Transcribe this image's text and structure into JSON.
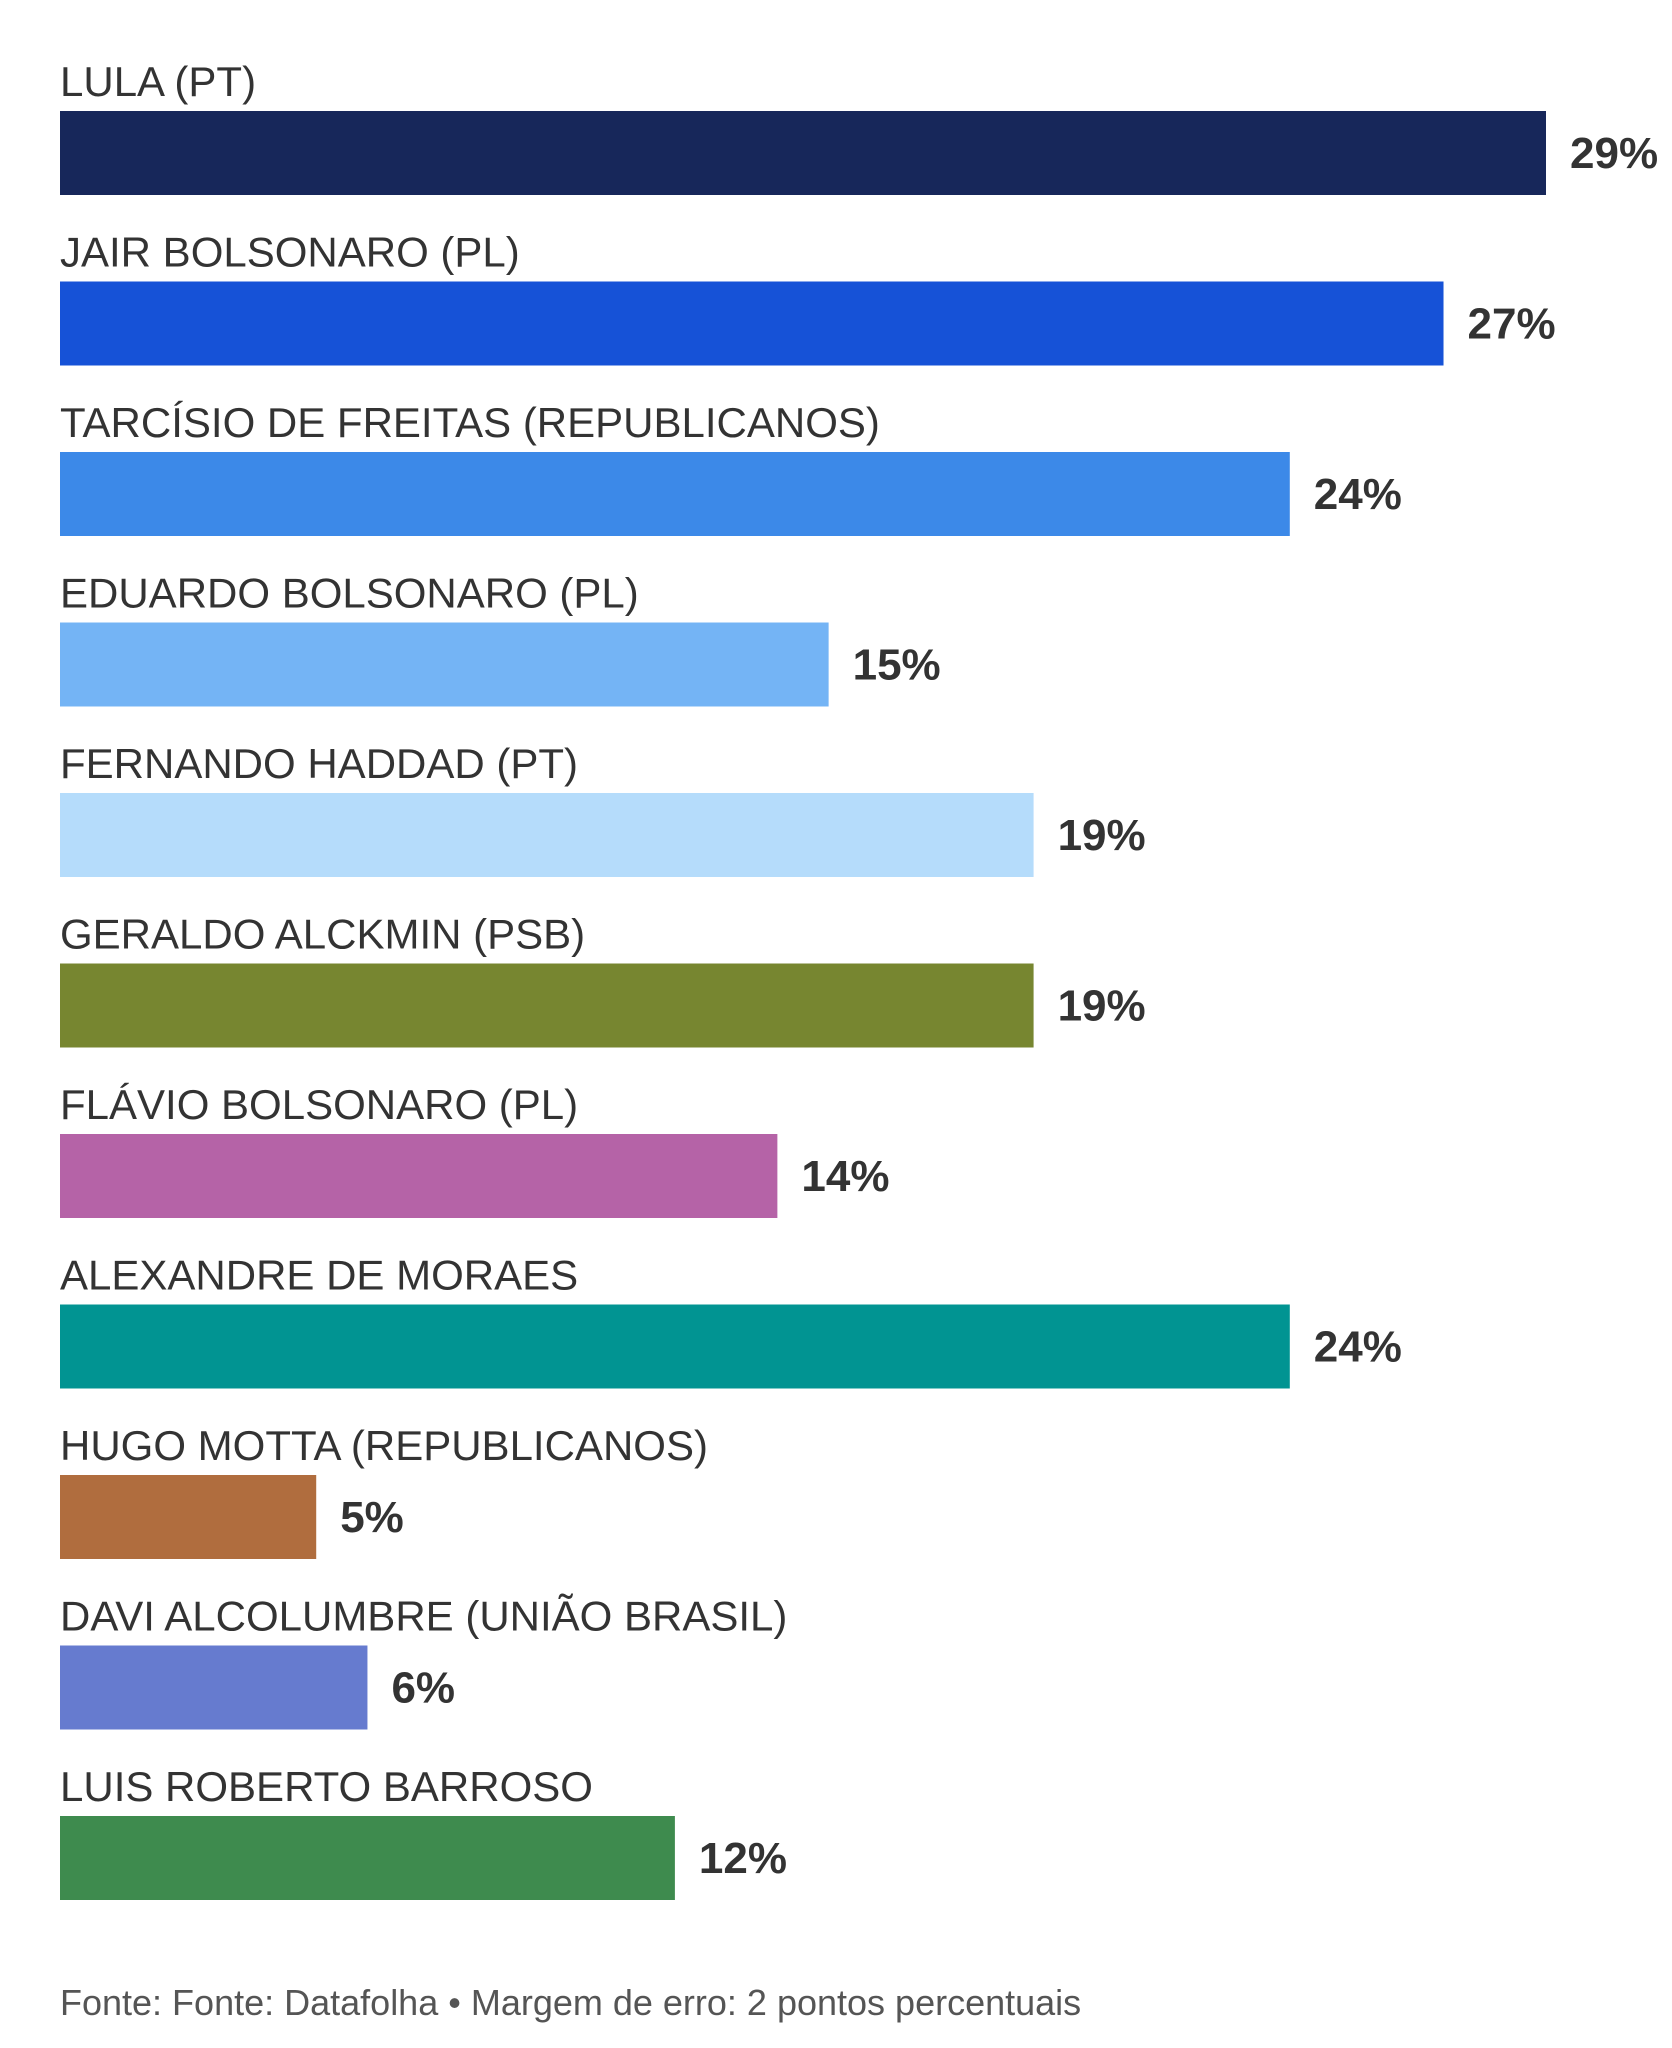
{
  "chart_data": {
    "type": "bar",
    "orientation": "horizontal",
    "title": "",
    "xlabel": "",
    "ylabel": "",
    "xlim": [
      0,
      29
    ],
    "grid": false,
    "legend": "none",
    "value_suffix": "%",
    "categories": [
      "LULA (PT)",
      "JAIR BOLSONARO (PL)",
      "TARCÍSIO DE FREITAS (REPUBLICANOS)",
      "EDUARDO BOLSONARO (PL)",
      "FERNANDO HADDAD (PT)",
      "GERALDO ALCKMIN (PSB)",
      "FLÁVIO BOLSONARO (PL)",
      "ALEXANDRE DE MORAES",
      "HUGO MOTTA (REPUBLICANOS)",
      "DAVI ALCOLUMBRE (UNIÃO BRASIL)",
      "LUIS ROBERTO BARROSO"
    ],
    "values": [
      29,
      27,
      24,
      15,
      19,
      19,
      14,
      24,
      5,
      6,
      12
    ],
    "colors": [
      "#17275a",
      "#1652d7",
      "#3c89e8",
      "#74b4f5",
      "#b5dcfb",
      "#778630",
      "#b563a7",
      "#019492",
      "#b06d3e",
      "#667bcf",
      "#3e8b4e"
    ]
  },
  "footer": {
    "source": "Fonte: Fonte: Datafolha • Margem de erro: 2 pontos percentuais"
  }
}
